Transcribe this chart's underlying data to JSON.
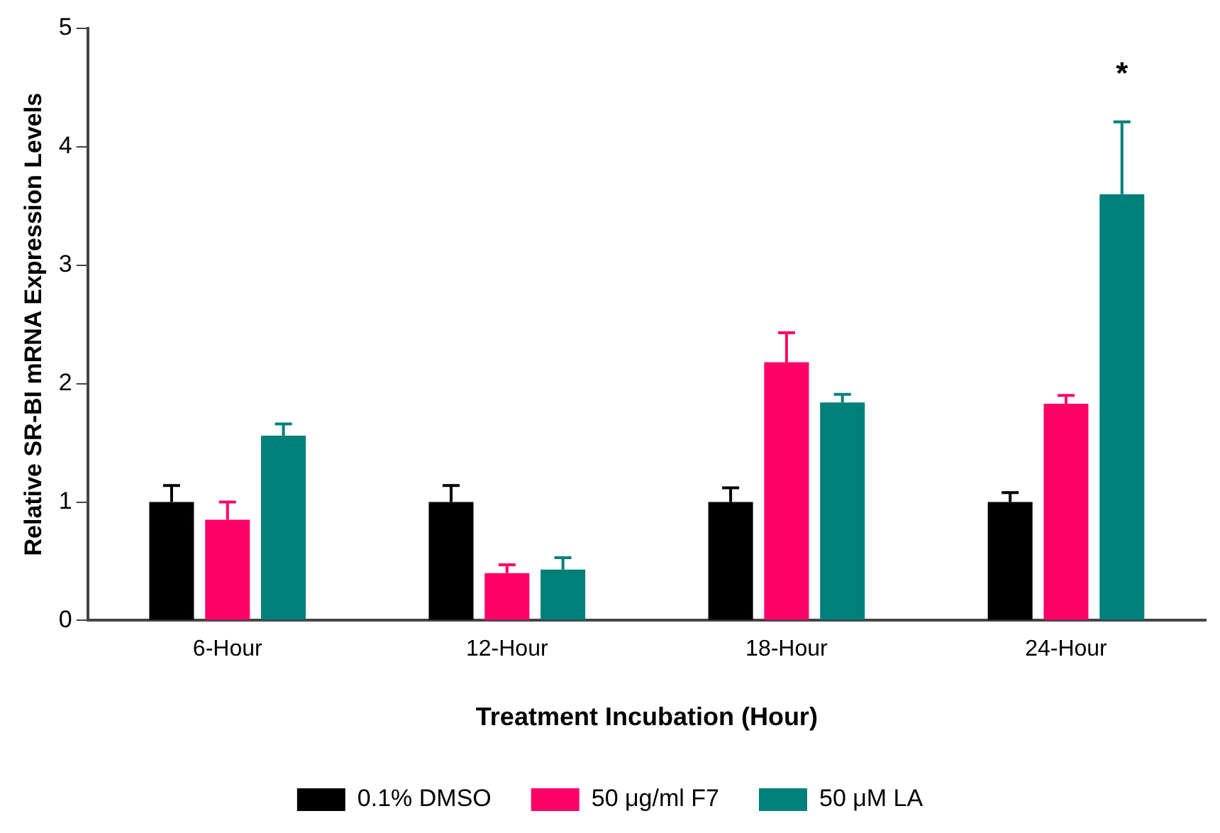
{
  "chart_data": {
    "type": "bar",
    "xlabel": "Treatment Incubation (Hour)",
    "ylabel": "Relative SR-BI mRNA Expression Levels",
    "categories": [
      "6-Hour",
      "12-Hour",
      "18-Hour",
      "24-Hour"
    ],
    "series": [
      {
        "name": "0.1% DMSO",
        "color": "#000000",
        "values": [
          1.0,
          1.0,
          1.0,
          1.0
        ],
        "errors": [
          0.14,
          0.14,
          0.12,
          0.08
        ]
      },
      {
        "name": "50 μg/ml F7",
        "color": "#ff0066",
        "values": [
          0.85,
          0.4,
          2.18,
          1.83
        ],
        "errors": [
          0.15,
          0.07,
          0.25,
          0.07
        ]
      },
      {
        "name": "50 μM LA",
        "color": "#007f7b",
        "values": [
          1.56,
          0.43,
          1.84,
          3.6
        ],
        "errors": [
          0.1,
          0.1,
          0.07,
          0.61
        ]
      }
    ],
    "ylim": [
      0,
      5
    ],
    "yticks": [
      0,
      1,
      2,
      3,
      4,
      5
    ],
    "grid": false,
    "legend": "bottom",
    "annotations": [
      "*"
    ]
  }
}
